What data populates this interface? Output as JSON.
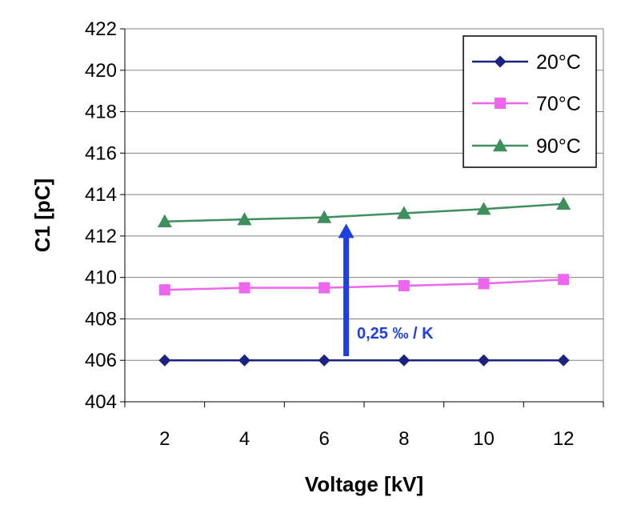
{
  "chart_data": {
    "type": "line",
    "title": "",
    "xlabel": "Voltage [kV]",
    "ylabel": "C1 [pC]",
    "x": [
      2,
      4,
      6,
      8,
      10,
      12
    ],
    "x_tick_labels": [
      "2",
      "4",
      "6",
      "8",
      "10",
      "12"
    ],
    "xlim": [
      1,
      13
    ],
    "ylim": [
      404,
      422
    ],
    "y_ticks": [
      404,
      406,
      408,
      410,
      412,
      414,
      416,
      418,
      420,
      422
    ],
    "y_tick_labels": [
      "404",
      "406",
      "408",
      "410",
      "412",
      "414",
      "416",
      "418",
      "420",
      "422"
    ],
    "grid": "horizontal",
    "legend_position": "top-right",
    "series": [
      {
        "name": "20°C",
        "values": [
          406.0,
          406.0,
          406.0,
          406.0,
          406.0,
          406.0
        ],
        "color": "#1a237e",
        "marker": "diamond"
      },
      {
        "name": "70°C",
        "values": [
          409.4,
          409.5,
          409.5,
          409.6,
          409.7,
          409.9
        ],
        "color": "#ee66ee",
        "marker": "square"
      },
      {
        "name": "90°C",
        "values": [
          412.7,
          412.8,
          412.9,
          413.1,
          413.3,
          413.55
        ],
        "color": "#3e8e5e",
        "marker": "triangle"
      }
    ],
    "annotation": {
      "text": "0,25 ‰ / K",
      "color": "#1f3fe0",
      "arrow_x": 6.55,
      "arrow_from_y": 406.2,
      "arrow_to_y": 412.6
    }
  }
}
